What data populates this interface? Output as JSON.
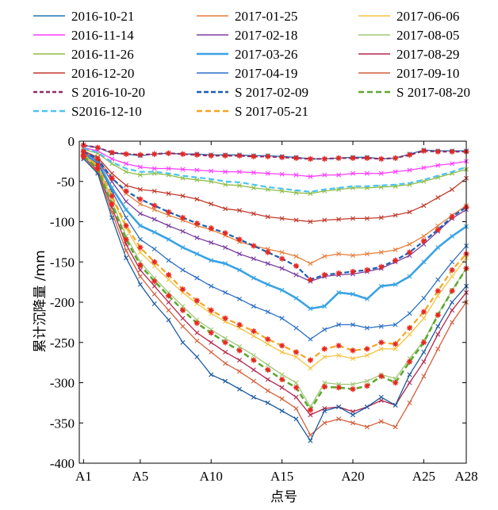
{
  "chart_data": {
    "type": "line",
    "xlabel": "点号",
    "ylabel": "累计沉降量 /mm",
    "ylim": [
      -400,
      0
    ],
    "yticks": [
      0,
      -50,
      -100,
      -150,
      -200,
      -250,
      -300,
      -350,
      -400
    ],
    "x_tick_labels": [
      {
        "x": 1,
        "label": "A1"
      },
      {
        "x": 5,
        "label": "A5"
      },
      {
        "x": 10,
        "label": "A10"
      },
      {
        "x": 15,
        "label": "A15"
      },
      {
        "x": 20,
        "label": "A20"
      },
      {
        "x": 25,
        "label": "A25"
      },
      {
        "x": 28,
        "label": "A28"
      }
    ],
    "xlim": [
      0.7,
      28
    ],
    "legend_position": "top",
    "x": [
      1,
      2,
      3,
      4,
      5,
      6,
      7,
      8,
      9,
      10,
      11,
      12,
      13,
      14,
      15,
      16,
      17,
      18,
      19,
      20,
      21,
      22,
      23,
      24,
      25,
      26,
      27,
      28
    ],
    "series": [
      {
        "name": "2016-10-21",
        "color": "#1f77b4",
        "dash": "",
        "width": 1.3,
        "marker": "x",
        "values": [
          -5,
          -8,
          -15,
          -16,
          -18,
          -16,
          -15,
          -16,
          -16,
          -17,
          -17,
          -17,
          -18,
          -18,
          -19,
          -20,
          -22,
          -22,
          -21,
          -20,
          -20,
          -22,
          -21,
          -16,
          -11,
          -12,
          -12,
          -12
        ]
      },
      {
        "name": "2016-11-14",
        "color": "#ff3cff",
        "dash": "",
        "width": 1.3,
        "marker": "x",
        "values": [
          -8,
          -12,
          -22,
          -28,
          -32,
          -34,
          -34,
          -35,
          -36,
          -37,
          -38,
          -38,
          -39,
          -40,
          -41,
          -42,
          -44,
          -42,
          -42,
          -40,
          -40,
          -40,
          -38,
          -36,
          -33,
          -30,
          -28,
          -25
        ]
      },
      {
        "name": "2016-11-26",
        "color": "#8fbc46",
        "dash": "",
        "width": 1.3,
        "marker": "x",
        "values": [
          -10,
          -15,
          -28,
          -38,
          -42,
          -40,
          -42,
          -46,
          -48,
          -50,
          -54,
          -55,
          -58,
          -60,
          -62,
          -64,
          -65,
          -62,
          -60,
          -58,
          -58,
          -57,
          -56,
          -54,
          -50,
          -45,
          -40,
          -35
        ]
      },
      {
        "name": "2016-12-20",
        "color": "#c0392b",
        "dash": "",
        "width": 1.3,
        "marker": "x",
        "values": [
          -12,
          -20,
          -40,
          -55,
          -60,
          -62,
          -65,
          -68,
          -72,
          -78,
          -84,
          -86,
          -90,
          -94,
          -96,
          -98,
          -100,
          -98,
          -97,
          -96,
          -96,
          -95,
          -92,
          -88,
          -80,
          -70,
          -60,
          -46
        ]
      },
      {
        "name": "2017-01-25",
        "color": "#e67e3c",
        "dash": "",
        "width": 1.3,
        "marker": "x",
        "values": [
          -13,
          -22,
          -45,
          -65,
          -78,
          -85,
          -92,
          -98,
          -105,
          -110,
          -117,
          -125,
          -130,
          -134,
          -138,
          -143,
          -152,
          -143,
          -140,
          -142,
          -140,
          -138,
          -135,
          -128,
          -118,
          -105,
          -92,
          -80
        ]
      },
      {
        "name": "2017-02-18",
        "color": "#7b3fa0",
        "dash": "",
        "width": 1.3,
        "marker": "x",
        "values": [
          -14,
          -24,
          -50,
          -75,
          -90,
          -97,
          -105,
          -112,
          -120,
          -126,
          -132,
          -140,
          -146,
          -152,
          -158,
          -166,
          -174,
          -168,
          -166,
          -165,
          -162,
          -158,
          -150,
          -142,
          -128,
          -112,
          -96,
          -85
        ]
      },
      {
        "name": "2017-03-26",
        "color": "#3aa3e3",
        "dash": "",
        "width": 2.6,
        "marker": "x",
        "values": [
          -15,
          -26,
          -58,
          -85,
          -105,
          -113,
          -122,
          -132,
          -140,
          -148,
          -152,
          -160,
          -170,
          -178,
          -185,
          -195,
          -208,
          -205,
          -188,
          -190,
          -196,
          -180,
          -178,
          -168,
          -150,
          -132,
          -118,
          -106
        ]
      },
      {
        "name": "2017-04-19",
        "color": "#2a6fc4",
        "dash": "",
        "width": 1.3,
        "marker": "x",
        "values": [
          -16,
          -28,
          -62,
          -95,
          -122,
          -134,
          -148,
          -160,
          -170,
          -180,
          -188,
          -196,
          -205,
          -212,
          -220,
          -232,
          -246,
          -234,
          -228,
          -228,
          -232,
          -230,
          -228,
          -214,
          -195,
          -172,
          -150,
          -130
        ]
      },
      {
        "name": "2017-06-06",
        "color": "#f5c242",
        "dash": "",
        "width": 1.3,
        "marker": "x",
        "values": [
          -17,
          -31,
          -70,
          -108,
          -138,
          -155,
          -172,
          -188,
          -202,
          -214,
          -224,
          -232,
          -242,
          -252,
          -262,
          -268,
          -282,
          -268,
          -266,
          -270,
          -266,
          -258,
          -258,
          -240,
          -220,
          -192,
          -168,
          -145
        ]
      },
      {
        "name": "2017-08-05",
        "color": "#a0c878",
        "dash": "",
        "width": 1.3,
        "marker": "x",
        "values": [
          -18,
          -33,
          -75,
          -118,
          -150,
          -170,
          -188,
          -205,
          -222,
          -234,
          -245,
          -255,
          -266,
          -278,
          -290,
          -300,
          -330,
          -300,
          -302,
          -302,
          -298,
          -290,
          -295,
          -270,
          -248,
          -215,
          -185,
          -158
        ]
      },
      {
        "name": "2017-08-29",
        "color": "#b5264b",
        "dash": "",
        "width": 1.3,
        "marker": "x",
        "values": [
          -20,
          -36,
          -82,
          -128,
          -160,
          -180,
          -200,
          -220,
          -238,
          -250,
          -262,
          -272,
          -284,
          -296,
          -306,
          -318,
          -340,
          -332,
          -330,
          -336,
          -330,
          -322,
          -328,
          -300,
          -274,
          -240,
          -210,
          -188
        ]
      },
      {
        "name": "2017-09-10",
        "color": "#d35f3a",
        "dash": "",
        "width": 1.3,
        "marker": "x",
        "values": [
          -22,
          -38,
          -88,
          -136,
          -168,
          -190,
          -210,
          -230,
          -248,
          -262,
          -276,
          -286,
          -298,
          -310,
          -320,
          -332,
          -365,
          -350,
          -345,
          -350,
          -355,
          -348,
          -355,
          -325,
          -292,
          -258,
          -225,
          -200
        ]
      },
      {
        "name": "2017-04-19",
        "color": "#1c5a9e",
        "dash": "",
        "width": 1.3,
        "marker": "x",
        "values": [
          -22,
          -40,
          -95,
          -145,
          -178,
          -202,
          -222,
          -250,
          -268,
          -290,
          -298,
          -308,
          -318,
          -325,
          -335,
          -345,
          -372,
          -335,
          -330,
          -340,
          -330,
          -318,
          -328,
          -290,
          -262,
          -230,
          -200,
          -180
        ]
      },
      {
        "name": "S 2016-10-20",
        "color": "#8e2c6a",
        "dash": "5,3",
        "width": 2.2,
        "marker": "star",
        "values": [
          -5,
          -8,
          -14,
          -16,
          -17,
          -16,
          -15,
          -16,
          -17,
          -18,
          -18,
          -18,
          -19,
          -19,
          -20,
          -21,
          -22,
          -22,
          -21,
          -21,
          -21,
          -22,
          -21,
          -17,
          -12,
          -13,
          -13,
          -13
        ]
      },
      {
        "name": "S2016-12-10",
        "color": "#4cc3f0",
        "dash": "7,4",
        "width": 2.2,
        "marker": "",
        "values": [
          -9,
          -14,
          -26,
          -34,
          -38,
          -38,
          -40,
          -43,
          -45,
          -47,
          -50,
          -51,
          -54,
          -57,
          -59,
          -61,
          -63,
          -60,
          -58,
          -56,
          -56,
          -55,
          -54,
          -52,
          -48,
          -43,
          -38,
          -32
        ]
      },
      {
        "name": "S 2017-02-09",
        "color": "#1a5fb4",
        "dash": "6,3",
        "width": 2.2,
        "marker": "star",
        "values": [
          -13,
          -22,
          -46,
          -62,
          -72,
          -80,
          -88,
          -95,
          -102,
          -108,
          -114,
          -122,
          -130,
          -138,
          -146,
          -155,
          -172,
          -166,
          -164,
          -162,
          -160,
          -156,
          -148,
          -138,
          -124,
          -110,
          -94,
          -82
        ]
      },
      {
        "name": "S 2017-05-21",
        "color": "#f3a623",
        "dash": "7,4",
        "width": 2.2,
        "marker": "star",
        "values": [
          -17,
          -30,
          -68,
          -105,
          -132,
          -150,
          -166,
          -184,
          -198,
          -210,
          -220,
          -228,
          -236,
          -246,
          -254,
          -262,
          -272,
          -258,
          -254,
          -260,
          -258,
          -250,
          -252,
          -232,
          -212,
          -186,
          -160,
          -140
        ]
      },
      {
        "name": "S 2017-08-20",
        "color": "#5fa832",
        "dash": "7,4",
        "width": 2.6,
        "marker": "star",
        "values": [
          -19,
          -34,
          -78,
          -122,
          -154,
          -174,
          -192,
          -210,
          -226,
          -238,
          -250,
          -260,
          -272,
          -284,
          -296,
          -306,
          -334,
          -305,
          -306,
          -308,
          -304,
          -292,
          -300,
          -274,
          -250,
          -216,
          -186,
          -158
        ]
      }
    ],
    "legend": [
      {
        "label": "2016-10-21",
        "series": 0
      },
      {
        "label": "2017-01-25",
        "series": 4
      },
      {
        "label": "2017-06-06",
        "series": 8
      },
      {
        "label": "2016-11-14",
        "series": 1
      },
      {
        "label": "2017-02-18",
        "series": 5
      },
      {
        "label": "2017-08-05",
        "series": 9
      },
      {
        "label": "2016-11-26",
        "series": 2
      },
      {
        "label": "2017-03-26",
        "series": 6
      },
      {
        "label": "2017-08-29",
        "series": 10
      },
      {
        "label": "2016-12-20",
        "series": 3
      },
      {
        "label": "2017-04-19",
        "series": 7
      },
      {
        "label": "2017-09-10",
        "series": 11
      },
      {
        "label": "S 2016-10-20",
        "series": 13
      },
      {
        "label": "S 2017-02-09",
        "series": 15
      },
      {
        "label": "S 2017-08-20",
        "series": 17
      },
      {
        "label": "S2016-12-10",
        "series": 14
      },
      {
        "label": "S 2017-05-21",
        "series": 16
      }
    ]
  }
}
